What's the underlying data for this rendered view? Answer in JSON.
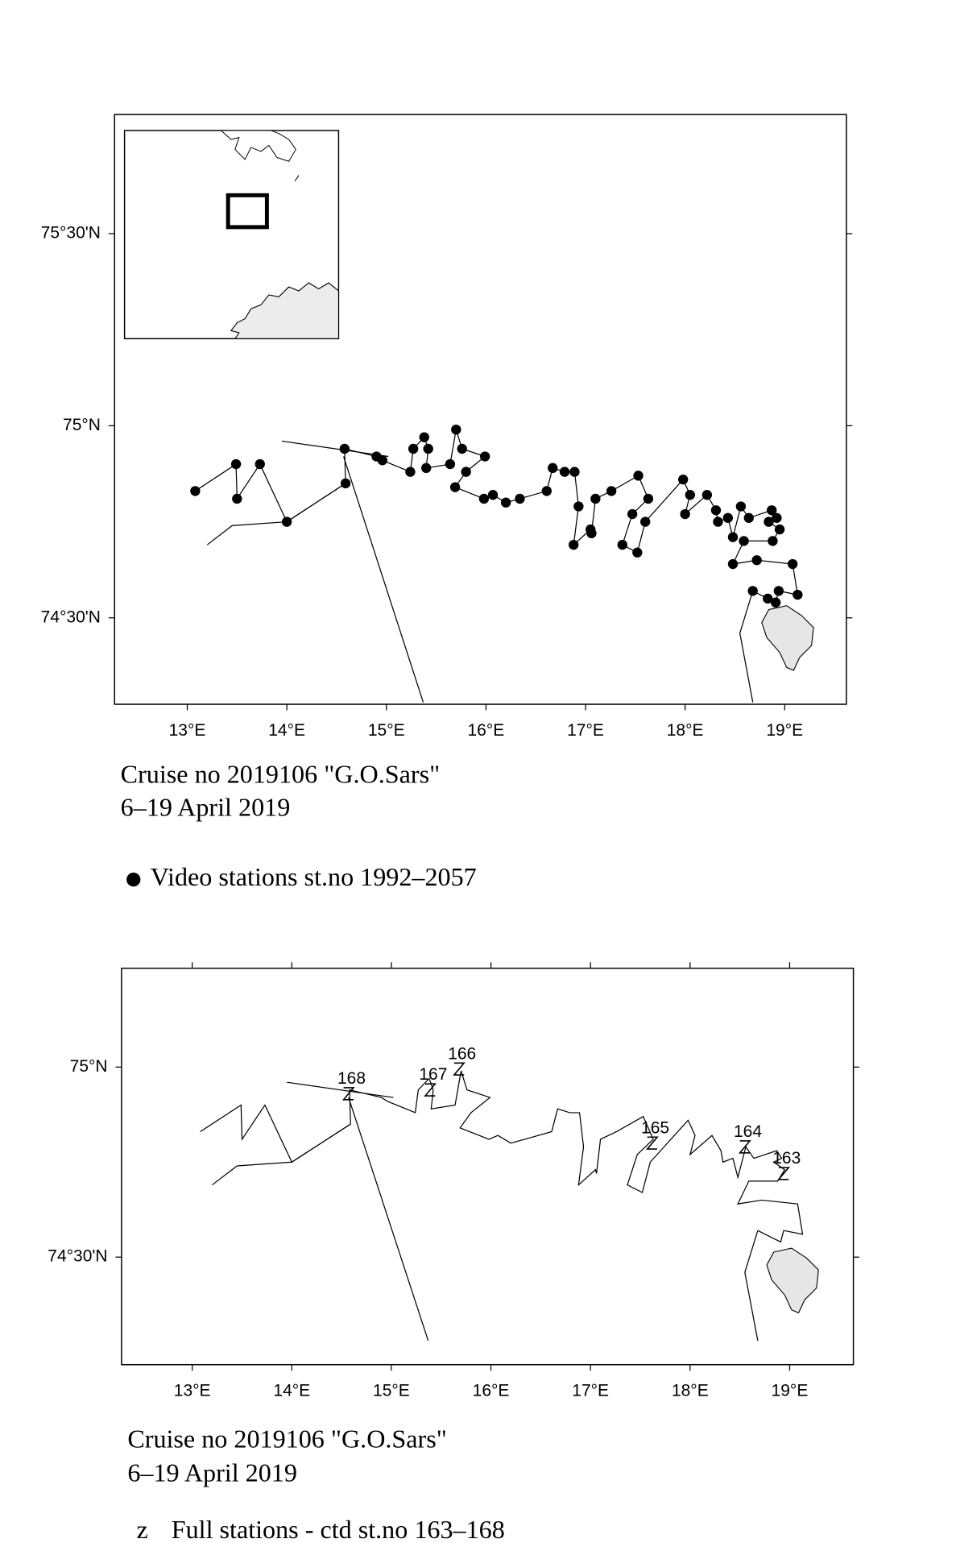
{
  "track_lines": [
    [
      [
        13.2,
        74.69
      ],
      [
        13.45,
        74.74
      ],
      [
        14.0,
        74.75
      ],
      [
        14.59,
        74.85
      ]
    ],
    [
      [
        14.57,
        74.92
      ],
      [
        15.37,
        74.28
      ]
    ],
    [
      [
        13.95,
        74.96
      ],
      [
        15.02,
        74.92
      ]
    ],
    [
      [
        18.68,
        74.28
      ],
      [
        18.55,
        74.46
      ],
      [
        18.68,
        74.57
      ]
    ]
  ],
  "maps": [
    {
      "xlim": [
        12.27,
        19.62
      ],
      "ylim": [
        74.275,
        75.81
      ],
      "xticks": [
        {
          "value": 13,
          "label": "13°E"
        },
        {
          "value": 14,
          "label": "14°E"
        },
        {
          "value": 15,
          "label": "15°E"
        },
        {
          "value": 16,
          "label": "16°E"
        },
        {
          "value": 17,
          "label": "17°E"
        },
        {
          "value": 18,
          "label": "18°E"
        },
        {
          "value": 19,
          "label": "19°E"
        }
      ],
      "yticks": [
        {
          "value": 74.5,
          "label": "74°30'N"
        },
        {
          "value": 75,
          "label": "75°N"
        },
        {
          "value": 75.5,
          "label": "75°30'N"
        }
      ],
      "caption": [
        "Cruise no 2019106  \"G.O.Sars\"",
        "6–19 April 2019"
      ],
      "legend": "Video stations st.no 1992–2057",
      "video_stations": [
        [
          13.08,
          74.83
        ],
        [
          13.49,
          74.9
        ],
        [
          13.5,
          74.81
        ],
        [
          13.73,
          74.9
        ],
        [
          14.0,
          74.75
        ],
        [
          14.59,
          74.85
        ],
        [
          14.58,
          74.94
        ],
        [
          14.9,
          74.92
        ],
        [
          14.96,
          74.91
        ],
        [
          15.24,
          74.88
        ],
        [
          15.27,
          74.94
        ],
        [
          15.38,
          74.97
        ],
        [
          15.42,
          74.94
        ],
        [
          15.4,
          74.89
        ],
        [
          15.64,
          74.9
        ],
        [
          15.7,
          74.99
        ],
        [
          15.76,
          74.94
        ],
        [
          15.99,
          74.92
        ],
        [
          15.8,
          74.88
        ],
        [
          15.69,
          74.84
        ],
        [
          15.98,
          74.81
        ],
        [
          16.07,
          74.82
        ],
        [
          16.2,
          74.8
        ],
        [
          16.34,
          74.81
        ],
        [
          16.61,
          74.83
        ],
        [
          16.67,
          74.89
        ],
        [
          16.79,
          74.88
        ],
        [
          16.89,
          74.88
        ],
        [
          16.93,
          74.79
        ],
        [
          16.88,
          74.69
        ],
        [
          17.05,
          74.73
        ],
        [
          17.06,
          74.72
        ],
        [
          17.1,
          74.81
        ],
        [
          17.26,
          74.83
        ],
        [
          17.53,
          74.87
        ],
        [
          17.63,
          74.81
        ],
        [
          17.47,
          74.77
        ],
        [
          17.37,
          74.69
        ],
        [
          17.52,
          74.67
        ],
        [
          17.6,
          74.75
        ],
        [
          17.98,
          74.86
        ],
        [
          18.05,
          74.82
        ],
        [
          18.0,
          74.77
        ],
        [
          18.22,
          74.82
        ],
        [
          18.31,
          74.78
        ],
        [
          18.33,
          74.75
        ],
        [
          18.43,
          74.76
        ],
        [
          18.48,
          74.71
        ],
        [
          18.56,
          74.79
        ],
        [
          18.64,
          74.76
        ],
        [
          18.87,
          74.78
        ],
        [
          18.92,
          74.76
        ],
        [
          18.84,
          74.75
        ],
        [
          18.95,
          74.73
        ],
        [
          18.88,
          74.7
        ],
        [
          18.59,
          74.7
        ],
        [
          18.48,
          74.64
        ],
        [
          18.72,
          74.65
        ],
        [
          19.08,
          74.64
        ],
        [
          19.13,
          74.56
        ],
        [
          18.94,
          74.57
        ],
        [
          18.91,
          74.54
        ],
        [
          18.83,
          74.55
        ],
        [
          18.68,
          74.57
        ]
      ]
    },
    {
      "xlim": [
        12.29,
        19.64
      ],
      "ylim": [
        74.217,
        75.26
      ],
      "xticks": [
        {
          "value": 13,
          "label": "13°E"
        },
        {
          "value": 14,
          "label": "14°E"
        },
        {
          "value": 15,
          "label": "15°E"
        },
        {
          "value": 16,
          "label": "16°E"
        },
        {
          "value": 17,
          "label": "17°E"
        },
        {
          "value": 18,
          "label": "18°E"
        },
        {
          "value": 19,
          "label": "19°E"
        }
      ],
      "yticks": [
        {
          "value": 74.5,
          "label": "74°30'N"
        },
        {
          "value": 75,
          "label": "75°N"
        }
      ],
      "caption": [
        "Cruise no 2019106  \"G.O.Sars\"",
        "6–19 April 2019"
      ],
      "legend_symbol": "z",
      "legend": "Full stations - ctd st.no 163–168",
      "full_stations": [
        {
          "label": "168",
          "lon": 14.57,
          "lat": 74.93
        },
        {
          "label": "167",
          "lon": 15.39,
          "lat": 74.94
        },
        {
          "label": "166",
          "lon": 15.68,
          "lat": 74.995
        },
        {
          "label": "165",
          "lon": 17.62,
          "lat": 74.8
        },
        {
          "label": "164",
          "lon": 18.55,
          "lat": 74.79
        },
        {
          "label": "163",
          "lon": 18.94,
          "lat": 74.72
        }
      ]
    }
  ]
}
